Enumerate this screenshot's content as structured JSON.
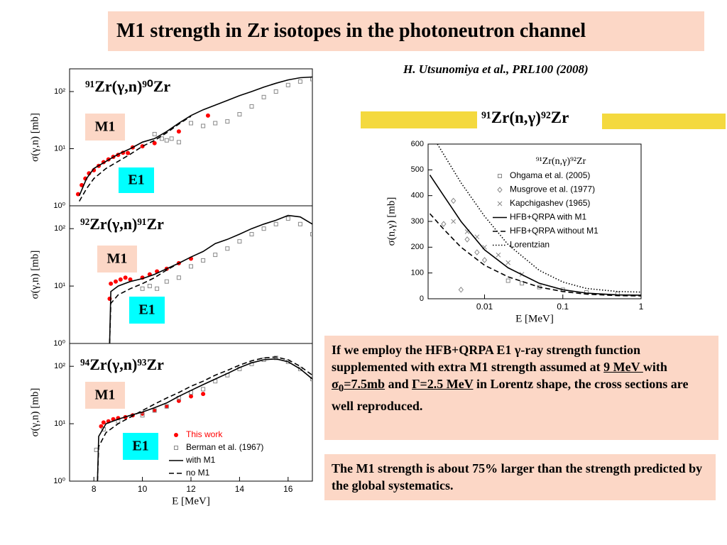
{
  "title": "M1 strength in Zr isotopes in the photoneutron channel",
  "reference": "H. Utsunomiya et al., PRL100 (2008)",
  "right_header": "⁹¹Zr(n,γ)⁹²Zr",
  "text_boxes": [
    {
      "runs": [
        "If we employ the HFB+QRPA E1 γ-ray strength function supplemented with extra M1 strength assumed at ",
        "9 MeV ",
        "with  ",
        "σ",
        "0",
        "=7.5mb",
        " and ",
        "Γ=2.5 MeV",
        " in Lorentz shape, the cross sections are well reproduced."
      ]
    },
    {
      "runs": [
        "The M1 strength is about 75% larger than the strength predicted by the global systematics."
      ]
    }
  ],
  "chart_data": [
    {
      "type": "line",
      "title": "⁹¹Zr(γ,n)⁹⁰Zr",
      "ylabel": "σ(γ,n) [mb]",
      "annotations": [
        "M1",
        "E1"
      ],
      "xlim": [
        7,
        17
      ],
      "ylim": [
        1,
        250
      ],
      "ylog": true,
      "yticks": [
        {
          "value": 1,
          "label": "10⁰"
        },
        {
          "value": 10,
          "label": "10¹"
        },
        {
          "value": 100,
          "label": "10²"
        }
      ],
      "series": [
        {
          "color": "#ff0000",
          "marker": "dot",
          "x": [
            7.35,
            7.5,
            7.65,
            7.8,
            8,
            8.2,
            8.4,
            8.6,
            8.8,
            9,
            9.2,
            9.4,
            9.6,
            10,
            10.5,
            11.5,
            12.7
          ],
          "values": [
            1.6,
            2.3,
            3,
            3.7,
            4.2,
            5,
            5.8,
            6.5,
            7.2,
            7.8,
            8.5,
            8.4,
            10.5,
            11,
            12.5,
            20,
            38
          ]
        },
        {
          "color": "#888888",
          "marker": "square",
          "x": [
            10.5,
            10.8,
            11,
            11.2,
            11.5,
            12,
            12.5,
            13,
            13.5,
            14,
            14.5,
            15,
            15.5,
            16,
            16.5,
            17
          ],
          "values": [
            18,
            15,
            14,
            15,
            13,
            28,
            25,
            28,
            30,
            40,
            55,
            80,
            100,
            130,
            150,
            165
          ]
        },
        {
          "color": "#000000",
          "line": "solid",
          "x": [
            7.4,
            7.7,
            8,
            8.5,
            9,
            9.5,
            10,
            10.5,
            11,
            11.5,
            12,
            12.5,
            13,
            13.5,
            14,
            14.5,
            15,
            15.5,
            16,
            16.5,
            17
          ],
          "values": [
            1.5,
            3,
            4.5,
            6,
            8,
            10,
            13,
            15,
            20,
            28,
            38,
            48,
            58,
            70,
            85,
            100,
            120,
            140,
            160,
            175,
            180
          ]
        },
        {
          "color": "#000000",
          "line": "dashed",
          "x": [
            7.4,
            7.7,
            8,
            8.5,
            9,
            9.5,
            10,
            10.5,
            11,
            11.5,
            12
          ],
          "values": [
            1.2,
            2,
            3,
            4.5,
            6,
            8,
            11,
            14,
            19,
            27,
            37
          ]
        }
      ]
    },
    {
      "type": "line",
      "title": "⁹²Zr(γ,n)⁹¹Zr",
      "ylabel": "σ(γ,n) [mb]",
      "annotations": [
        "M1",
        "E1"
      ],
      "xlim": [
        7,
        17
      ],
      "ylim": [
        1,
        250
      ],
      "ylog": true,
      "yticks": [
        {
          "value": 1,
          "label": "10⁰"
        },
        {
          "value": 10,
          "label": "10¹"
        },
        {
          "value": 100,
          "label": "10²"
        }
      ],
      "series": [
        {
          "color": "#ff0000",
          "marker": "dot",
          "x": [
            8.65,
            8.7,
            8.9,
            9.1,
            9.3,
            9.5,
            10,
            10.3,
            10.6,
            11,
            11.5,
            12
          ],
          "values": [
            6,
            11,
            12,
            13,
            14,
            13,
            14,
            16,
            18,
            20,
            25,
            30
          ]
        },
        {
          "color": "#888888",
          "marker": "square",
          "x": [
            10,
            10.3,
            10.6,
            11,
            11.5,
            12,
            12.5,
            13,
            13.5,
            14,
            14.5,
            15,
            15.5,
            16,
            16.5,
            17
          ],
          "values": [
            9,
            10,
            9,
            12,
            14,
            22,
            28,
            35,
            45,
            60,
            80,
            100,
            120,
            150,
            120,
            80
          ]
        },
        {
          "color": "#000000",
          "line": "solid",
          "x": [
            8.65,
            8.7,
            9,
            9.5,
            10,
            10.5,
            11,
            11.5,
            12,
            12.5,
            13,
            13.5,
            14,
            14.5,
            15,
            15.5,
            16,
            16.5,
            17
          ],
          "values": [
            1,
            8,
            10,
            12,
            13.5,
            16,
            20,
            25,
            32,
            40,
            55,
            65,
            80,
            100,
            120,
            140,
            170,
            160,
            120
          ]
        },
        {
          "color": "#000000",
          "line": "dashed",
          "x": [
            8.65,
            8.7,
            9,
            9.5,
            10,
            10.5,
            11,
            11.5
          ],
          "values": [
            1,
            5,
            7,
            9,
            11,
            14,
            19,
            25
          ]
        }
      ]
    },
    {
      "type": "line",
      "title": "⁹⁴Zr(γ,n)⁹³Zr",
      "ylabel": "σ(γ,n) [mb]",
      "xlabel": "E [MeV]",
      "annotations": [
        "M1",
        "E1"
      ],
      "xlim": [
        7,
        17
      ],
      "ylim": [
        1,
        250
      ],
      "ylog": true,
      "legend": "lower right",
      "xticks": [
        8,
        10,
        12,
        14,
        16
      ],
      "yticks": [
        {
          "value": 1,
          "label": "10⁰"
        },
        {
          "value": 10,
          "label": "10¹"
        },
        {
          "value": 100,
          "label": "10²"
        }
      ],
      "series": [
        {
          "name": "This work",
          "color": "#ff0000",
          "marker": "dot",
          "x": [
            8.3,
            8.4,
            8.6,
            8.8,
            9,
            9.3,
            9.6,
            10,
            10.5,
            11,
            11.5,
            12,
            12.5
          ],
          "values": [
            9,
            10.5,
            11,
            12,
            12.5,
            13,
            14,
            15,
            17,
            20,
            25,
            30,
            33
          ]
        },
        {
          "name": "Berman et al. (1967)",
          "color": "#888888",
          "marker": "square",
          "x": [
            8.1,
            8.4,
            9,
            10,
            10.5,
            11,
            11.5,
            12,
            12.5,
            13,
            13.5,
            14,
            14.5,
            15,
            15.5,
            16,
            16.5,
            17
          ],
          "values": [
            3.5,
            8,
            11,
            14,
            17,
            20,
            28,
            35,
            40,
            55,
            70,
            90,
            110,
            130,
            140,
            120,
            90,
            60
          ]
        },
        {
          "name": "with M1",
          "color": "#000000",
          "line": "solid",
          "x": [
            8.15,
            8.2,
            8.5,
            9,
            9.5,
            10,
            10.5,
            11,
            11.5,
            12,
            12.5,
            13,
            13.5,
            14,
            14.5,
            15,
            15.5,
            16,
            16.5,
            17
          ],
          "values": [
            1,
            6,
            10,
            12,
            14,
            16,
            19,
            23,
            30,
            38,
            48,
            60,
            75,
            95,
            115,
            130,
            135,
            120,
            90,
            60
          ]
        },
        {
          "name": "no M1",
          "color": "#000000",
          "line": "dashed",
          "x": [
            8.15,
            8.2,
            8.5,
            9,
            9.5,
            10,
            10.5,
            11,
            11.5,
            12,
            12.5,
            13,
            13.5,
            14,
            14.5,
            15,
            15.5,
            16,
            16.5,
            17
          ],
          "values": [
            1,
            4,
            7,
            10,
            13,
            17,
            22,
            28,
            35,
            45,
            55,
            70,
            85,
            105,
            125,
            140,
            145,
            130,
            100,
            70
          ]
        }
      ]
    },
    {
      "type": "line",
      "title": "⁹¹Zr(n,γ)⁹²Zr",
      "xlabel": "E [MeV]",
      "ylabel": "σ(n,γ) [mb]",
      "xlim": [
        0.0019,
        1
      ],
      "xlog": true,
      "ylim": [
        0,
        600
      ],
      "legend": "upper right",
      "xticks": [
        0.01,
        0.1,
        1
      ],
      "yticks": [
        0,
        100,
        200,
        300,
        400,
        500,
        600
      ],
      "series": [
        {
          "name": "Ohgama et al. (2005)",
          "color": "#888888",
          "marker": "square",
          "x": [
            0.02,
            0.03,
            0.05,
            0.1,
            0.2,
            0.5
          ],
          "values": [
            70,
            60,
            45,
            35,
            25,
            20
          ]
        },
        {
          "name": "Musgrove et al. (1977)",
          "color": "#888888",
          "marker": "diamond",
          "x": [
            0.003,
            0.004,
            0.005,
            0.006,
            0.008,
            0.01
          ],
          "values": [
            290,
            380,
            35,
            230,
            180,
            150
          ]
        },
        {
          "name": "Kapchigashev (1965)",
          "color": "#888888",
          "marker": "x",
          "x": [
            0.004,
            0.006,
            0.008,
            0.01,
            0.015,
            0.02,
            0.03
          ],
          "values": [
            300,
            260,
            240,
            200,
            170,
            140,
            95
          ]
        },
        {
          "name": "HFB+QRPA with M1",
          "color": "#000000",
          "line": "solid",
          "x": [
            0.002,
            0.003,
            0.005,
            0.01,
            0.02,
            0.05,
            0.1,
            0.2,
            0.5,
            1
          ],
          "values": [
            480,
            400,
            300,
            190,
            120,
            60,
            35,
            22,
            15,
            14
          ]
        },
        {
          "name": "HFB+QRPA without M1",
          "color": "#000000",
          "line": "dashed",
          "x": [
            0.002,
            0.003,
            0.005,
            0.01,
            0.02,
            0.05,
            0.1,
            0.2,
            0.5,
            1
          ],
          "values": [
            330,
            270,
            200,
            130,
            85,
            45,
            28,
            18,
            12,
            11
          ]
        },
        {
          "name": "Lorentzian",
          "color": "#000000",
          "line": "dotted",
          "x": [
            0.0025,
            0.005,
            0.01,
            0.02,
            0.05,
            0.1,
            0.2,
            0.5,
            1
          ],
          "values": [
            600,
            450,
            320,
            210,
            110,
            65,
            40,
            28,
            26
          ]
        }
      ]
    }
  ]
}
